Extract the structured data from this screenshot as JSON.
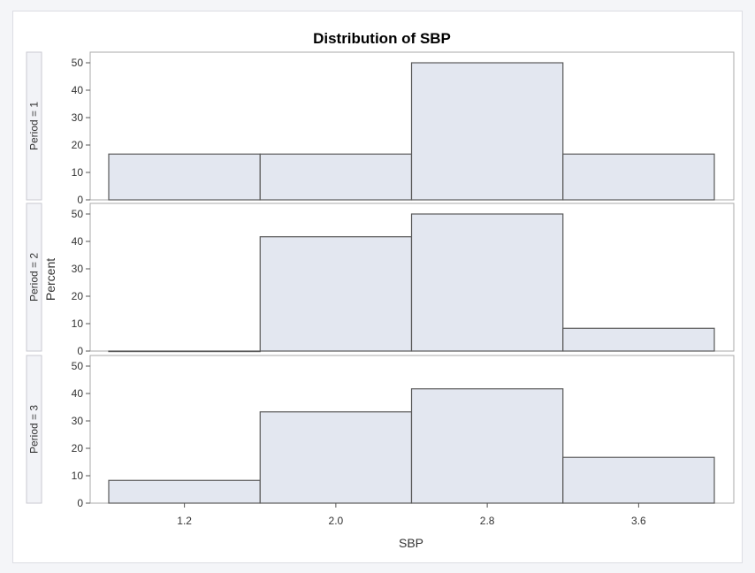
{
  "chart_data": {
    "type": "bar",
    "title": "Distribution of SBP",
    "xlabel": "SBP",
    "ylabel": "Percent",
    "x_ticks": [
      "1.2",
      "2.0",
      "2.8",
      "3.6"
    ],
    "y_ticks": [
      "0",
      "10",
      "20",
      "30",
      "40",
      "50"
    ],
    "ylim": [
      0,
      52
    ],
    "bin_edges": [
      0.8,
      1.6,
      2.4,
      3.2,
      4.0
    ],
    "panels": [
      {
        "label": "Period = 1",
        "values": [
          16.7,
          16.7,
          50.0,
          16.7
        ]
      },
      {
        "label": "Period = 2",
        "values": [
          0,
          41.7,
          50.0,
          8.3
        ]
      },
      {
        "label": "Period = 3",
        "values": [
          8.3,
          33.3,
          41.7,
          16.7
        ]
      }
    ],
    "colors": {
      "bar_fill": "#e3e7f0",
      "bar_stroke": "#5a5a5a",
      "panel_border": "#a9a9a9",
      "strip_fill": "#f2f3f7"
    }
  }
}
